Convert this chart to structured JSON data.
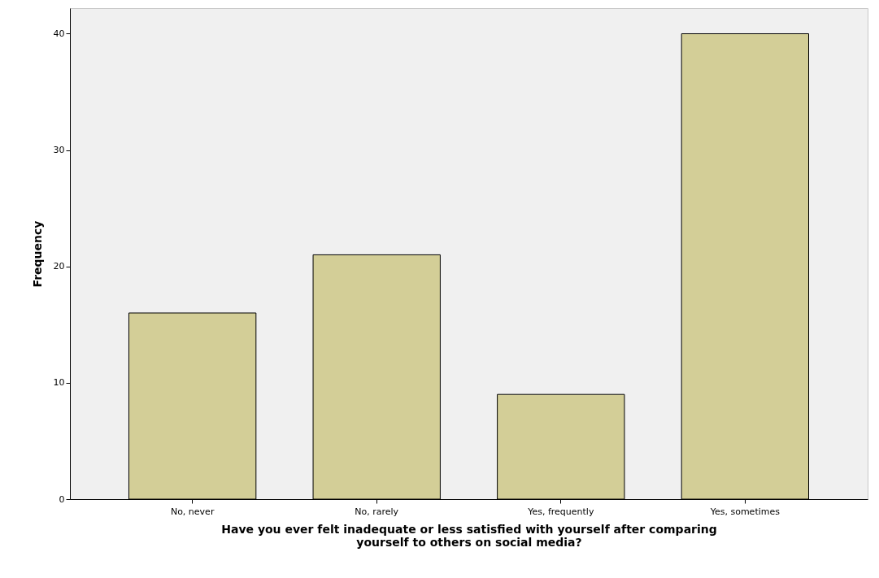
{
  "chart_data": {
    "type": "bar",
    "xlabel": "Have you ever felt inadequate or less satisfied with yourself after comparing yourself to others on social media?",
    "ylabel": "Frequency",
    "categories": [
      "No, never",
      "No, rarely",
      "Yes, frequently",
      "Yes, sometimes"
    ],
    "values": [
      16,
      21,
      9,
      40
    ],
    "color": "#d3ce97",
    "ylim": [
      0,
      42.2
    ],
    "yticks": [
      0,
      10,
      20,
      30,
      40
    ]
  }
}
